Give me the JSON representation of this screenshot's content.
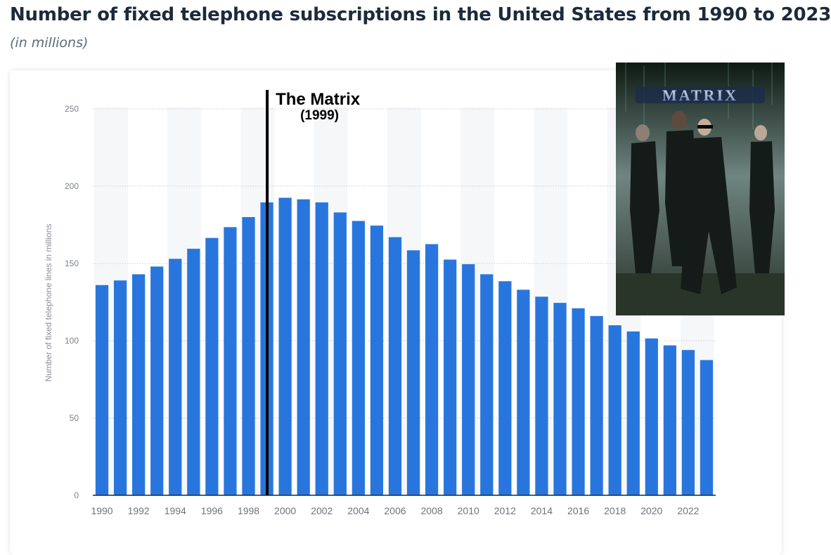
{
  "title": "Number of fixed telephone subscriptions in the United States from 1990 to 2023",
  "subtitle": "(in millions)",
  "chart_data": {
    "type": "bar",
    "title": "Number of fixed telephone subscriptions in the United States from 1990 to 2023",
    "subtitle": "(in millions)",
    "xlabel": "",
    "ylabel": "Number of fixed telephone lines in millions",
    "ylim": [
      0,
      250
    ],
    "yticks": [
      0,
      50,
      100,
      150,
      200,
      250
    ],
    "grid": true,
    "categories": [
      "1990",
      "1991",
      "1992",
      "1993",
      "1994",
      "1995",
      "1996",
      "1997",
      "1998",
      "1999",
      "2000",
      "2001",
      "2002",
      "2003",
      "2004",
      "2005",
      "2006",
      "2007",
      "2008",
      "2009",
      "2010",
      "2011",
      "2012",
      "2013",
      "2014",
      "2015",
      "2016",
      "2017",
      "2018",
      "2019",
      "2020",
      "2021",
      "2022",
      "2023"
    ],
    "xtick_labels": [
      "1990",
      "1992",
      "1994",
      "1996",
      "1998",
      "2000",
      "2002",
      "2004",
      "2006",
      "2008",
      "2010",
      "2012",
      "2014",
      "2016",
      "2018",
      "2020",
      "2022"
    ],
    "values": [
      136,
      139,
      143,
      148,
      153,
      159.5,
      166.5,
      173.5,
      180,
      189.5,
      192.5,
      191.5,
      189.5,
      183,
      177.5,
      174.5,
      167,
      158.5,
      162.5,
      152.5,
      149.5,
      143,
      138.5,
      133,
      128.5,
      124.5,
      121,
      116,
      110,
      106,
      101.5,
      97,
      94,
      87.5
    ],
    "bar_color": "#2876dd",
    "annotation": {
      "label": "The Matrix",
      "sublabel": "(1999)",
      "x_value": 1999.5
    }
  },
  "poster": {
    "title_text": "MATRIX",
    "colors": {
      "sky": "#7a8e8a",
      "dark": "#141a18",
      "ground": "#2e3a30",
      "logo": "#9fb4d8"
    }
  }
}
